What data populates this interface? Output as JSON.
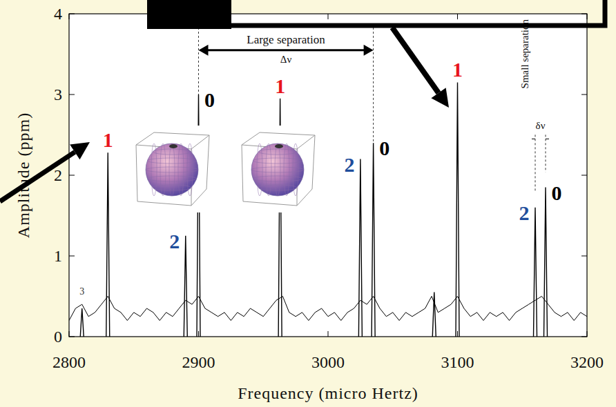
{
  "chart_data": {
    "type": "line",
    "x_label": "Frequency (micro Hertz)",
    "y_label": "Amplitude (ppm)",
    "xlim": [
      2800,
      3200
    ],
    "xticks": [
      2800,
      2900,
      3000,
      3100,
      3200
    ],
    "ylim": [
      0,
      4
    ],
    "yticks": [
      0,
      1,
      2,
      3,
      4
    ],
    "color": "#000000",
    "x": [
      2800,
      2805,
      2810,
      2815,
      2820,
      2825,
      2830,
      2835,
      2840,
      2845,
      2850,
      2855,
      2860,
      2865,
      2870,
      2875,
      2880,
      2885,
      2890,
      2895,
      2900,
      2905,
      2910,
      2915,
      2920,
      2925,
      2930,
      2935,
      2940,
      2945,
      2950,
      2955,
      2960,
      2965,
      2970,
      2975,
      2980,
      2985,
      2990,
      2995,
      3000,
      3005,
      3010,
      3015,
      3020,
      3025,
      3030,
      3035,
      3040,
      3045,
      3050,
      3055,
      3060,
      3065,
      3070,
      3075,
      3080,
      3085,
      3090,
      3095,
      3100,
      3105,
      3110,
      3115,
      3120,
      3125,
      3130,
      3135,
      3140,
      3145,
      3150,
      3155,
      3160,
      3165,
      3170,
      3175,
      3180,
      3185,
      3190,
      3195,
      3200
    ],
    "values": [
      0.2,
      0.35,
      0.4,
      0.25,
      0.3,
      0.4,
      0.5,
      0.35,
      0.3,
      0.2,
      0.3,
      0.25,
      0.35,
      0.3,
      0.2,
      0.3,
      0.25,
      0.35,
      0.45,
      0.4,
      0.5,
      0.35,
      0.3,
      0.25,
      0.3,
      0.2,
      0.3,
      0.25,
      0.35,
      0.3,
      0.25,
      0.35,
      0.45,
      0.5,
      0.3,
      0.25,
      0.3,
      0.2,
      0.3,
      0.35,
      0.25,
      0.3,
      0.2,
      0.3,
      0.35,
      0.45,
      0.4,
      0.5,
      0.35,
      0.25,
      0.3,
      0.2,
      0.3,
      0.25,
      0.3,
      0.35,
      0.5,
      0.3,
      0.35,
      0.4,
      0.5,
      0.35,
      0.25,
      0.3,
      0.2,
      0.3,
      0.25,
      0.3,
      0.2,
      0.3,
      0.35,
      0.4,
      0.45,
      0.5,
      0.4,
      0.3,
      0.25,
      0.3,
      0.2,
      0.3,
      0.25
    ],
    "peaks": {
      "x": [
        2810,
        2830,
        2890,
        2900,
        2963,
        3025,
        3035,
        3082,
        3100,
        3160,
        3168
      ],
      "values": [
        0.35,
        2.28,
        1.25,
        3.0,
        2.95,
        2.2,
        2.4,
        0.55,
        3.15,
        1.6,
        1.85
      ],
      "labels": [
        "3",
        "1",
        "2",
        "0",
        "1",
        "2",
        "0",
        null,
        "1",
        "2",
        "0"
      ],
      "label_colors": [
        "#333333",
        "#e8141c",
        "#1f4e9c",
        "#000000",
        "#e8141c",
        "#1f4e9c",
        "#000000",
        null,
        "#e8141c",
        "#1f4e9c",
        "#000000"
      ]
    },
    "large_separation": {
      "text": "Large separation",
      "symbol": "Δν",
      "x": [
        2900,
        3035
      ],
      "y": 3.55
    },
    "small_separation": {
      "text": "Small separation",
      "symbol": "δν",
      "x": [
        3160,
        3168
      ],
      "y": 2.45
    }
  }
}
